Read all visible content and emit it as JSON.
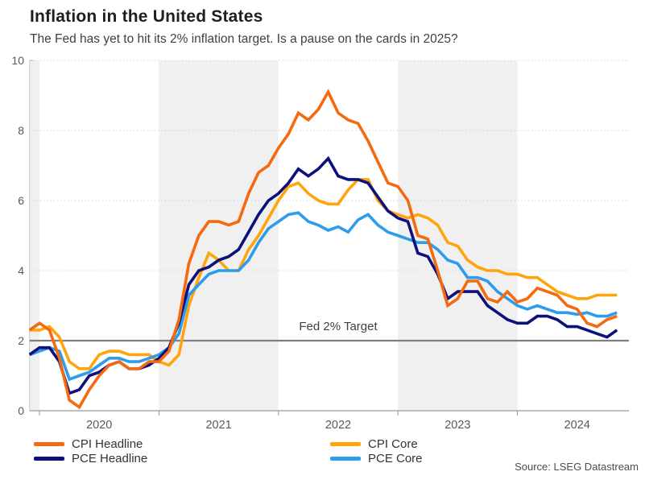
{
  "header": {
    "title": "Inflation in the United States",
    "subtitle": "The Fed has yet to hit its 2% inflation target. Is a pause on the cards in 2025?"
  },
  "chart_data": {
    "type": "line",
    "title": "Inflation in the United States",
    "x_start": "2019-12",
    "x_end": "2024-11",
    "frequency": "monthly",
    "ylim": [
      0,
      10
    ],
    "y_ticks": [
      0,
      2,
      4,
      6,
      8,
      10
    ],
    "x_year_labels": [
      "2020",
      "2021",
      "2022",
      "2023",
      "2024"
    ],
    "grid": "dotted-horizontal",
    "shaded_band_color": "#f0f0f0",
    "shaded_bands_month_index": [
      [
        0,
        1
      ],
      [
        13,
        25
      ],
      [
        37,
        49
      ]
    ],
    "target_line": {
      "value": 2,
      "label": "Fed 2% Target",
      "color": "#7f7f7f"
    },
    "series": [
      {
        "name": "CPI Core",
        "color": "#FFA40D",
        "values": [
          2.3,
          2.3,
          2.4,
          2.1,
          1.4,
          1.2,
          1.2,
          1.6,
          1.7,
          1.7,
          1.6,
          1.6,
          1.6,
          1.4,
          1.3,
          1.6,
          3.0,
          3.8,
          4.5,
          4.3,
          4.0,
          4.0,
          4.6,
          5.0,
          5.5,
          6.0,
          6.4,
          6.5,
          6.2,
          6.0,
          5.9,
          5.9,
          6.3,
          6.6,
          6.6,
          6.0,
          5.7,
          5.6,
          5.5,
          5.6,
          5.5,
          5.3,
          4.8,
          4.7,
          4.3,
          4.1,
          4.0,
          4.0,
          3.9,
          3.9,
          3.8,
          3.8,
          3.6,
          3.4,
          3.3,
          3.2,
          3.2,
          3.3,
          3.3,
          3.3
        ]
      },
      {
        "name": "PCE Core",
        "color": "#2D9CEC",
        "values": [
          1.6,
          1.7,
          1.8,
          1.7,
          0.9,
          1.0,
          1.1,
          1.3,
          1.5,
          1.5,
          1.4,
          1.4,
          1.5,
          1.6,
          1.8,
          2.2,
          3.3,
          3.6,
          3.9,
          4.0,
          4.0,
          4.0,
          4.3,
          4.8,
          5.2,
          5.4,
          5.6,
          5.65,
          5.4,
          5.3,
          5.15,
          5.25,
          5.1,
          5.45,
          5.6,
          5.3,
          5.1,
          5.0,
          4.9,
          4.8,
          4.8,
          4.6,
          4.3,
          4.2,
          3.8,
          3.8,
          3.7,
          3.4,
          3.2,
          3.0,
          2.9,
          3.0,
          2.9,
          2.8,
          2.8,
          2.75,
          2.8,
          2.7,
          2.7,
          2.8
        ]
      },
      {
        "name": "PCE Headline",
        "color": "#0C117B",
        "values": [
          1.6,
          1.8,
          1.8,
          1.4,
          0.5,
          0.6,
          1.0,
          1.1,
          1.3,
          1.4,
          1.2,
          1.2,
          1.3,
          1.5,
          1.8,
          2.5,
          3.6,
          4.0,
          4.1,
          4.3,
          4.4,
          4.6,
          5.1,
          5.6,
          6.0,
          6.2,
          6.5,
          6.9,
          6.7,
          6.9,
          7.2,
          6.7,
          6.6,
          6.6,
          6.5,
          6.1,
          5.7,
          5.5,
          5.4,
          4.5,
          4.4,
          3.9,
          3.2,
          3.4,
          3.4,
          3.4,
          3.0,
          2.8,
          2.6,
          2.5,
          2.5,
          2.7,
          2.7,
          2.6,
          2.4,
          2.4,
          2.3,
          2.2,
          2.1,
          2.3
        ]
      },
      {
        "name": "CPI Headline",
        "color": "#F5690F",
        "values": [
          2.3,
          2.5,
          2.3,
          1.5,
          0.3,
          0.1,
          0.6,
          1.0,
          1.3,
          1.4,
          1.2,
          1.2,
          1.4,
          1.4,
          1.7,
          2.6,
          4.2,
          5.0,
          5.4,
          5.4,
          5.3,
          5.4,
          6.2,
          6.8,
          7.0,
          7.5,
          7.9,
          8.5,
          8.3,
          8.6,
          9.1,
          8.5,
          8.3,
          8.2,
          7.7,
          7.1,
          6.5,
          6.4,
          6.0,
          5.0,
          4.9,
          4.0,
          3.0,
          3.2,
          3.7,
          3.7,
          3.2,
          3.1,
          3.4,
          3.1,
          3.2,
          3.5,
          3.4,
          3.3,
          3.0,
          2.9,
          2.5,
          2.4,
          2.6,
          2.7
        ]
      }
    ]
  },
  "legend": {
    "items": [
      {
        "label": "CPI Headline",
        "color": "#F5690F"
      },
      {
        "label": "CPI Core",
        "color": "#FFA40D"
      },
      {
        "label": "PCE Headline",
        "color": "#0C117B"
      },
      {
        "label": "PCE Core",
        "color": "#2D9CEC"
      }
    ]
  },
  "footer": {
    "source": "Source: LSEG Datastream"
  }
}
